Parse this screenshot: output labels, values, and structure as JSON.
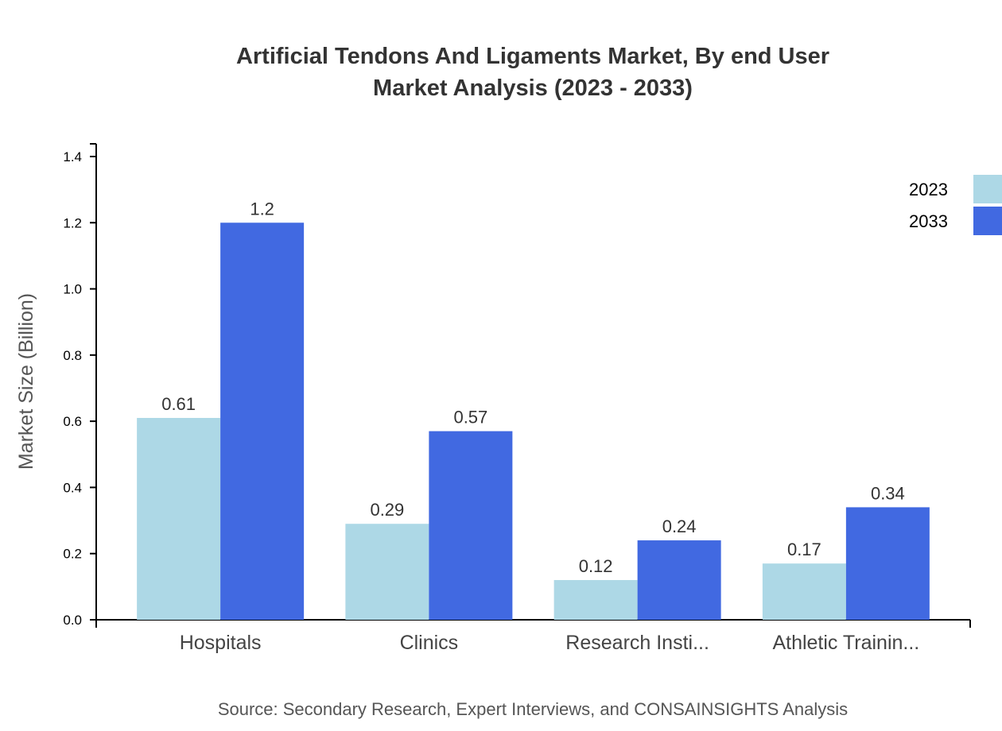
{
  "chart_data": {
    "type": "bar",
    "title": [
      "Artificial Tendons And Ligaments Market, By end User",
      "Market Analysis (2023 - 2033)"
    ],
    "xlabel": "",
    "ylabel": "Market Size (Billion)",
    "ylim": [
      0,
      1.4
    ],
    "yticks": [
      "0.0",
      "0.2",
      "0.4",
      "0.6",
      "0.8",
      "1.0",
      "1.2",
      "1.4"
    ],
    "categories": [
      "Hospitals",
      "Clinics",
      "Research Insti...",
      "Athletic Trainin..."
    ],
    "series": [
      {
        "name": "2023",
        "color": "#add8e6",
        "values": [
          0.61,
          0.29,
          0.12,
          0.17
        ],
        "labels": [
          "0.61",
          "0.29",
          "0.12",
          "0.17"
        ]
      },
      {
        "name": "2033",
        "color": "#4169e1",
        "values": [
          1.2,
          0.57,
          0.24,
          0.34
        ],
        "labels": [
          "1.2",
          "0.57",
          "0.24",
          "0.34"
        ]
      }
    ],
    "legend": "top-right",
    "grid": false,
    "source": "Source: Secondary Research, Expert Interviews, and CONSAINSIGHTS Analysis"
  }
}
